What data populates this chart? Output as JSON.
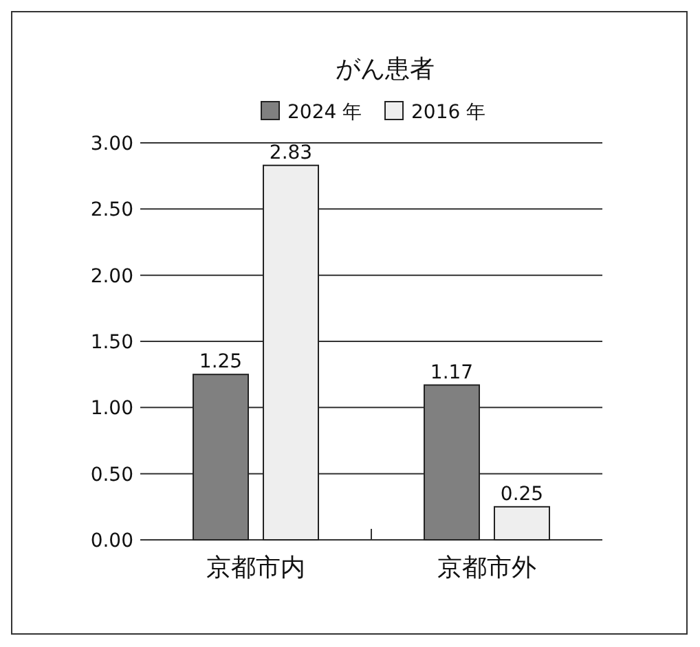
{
  "chart_data": {
    "type": "bar",
    "title": "がん患者",
    "categories": [
      "京都市内",
      "京都市外"
    ],
    "series": [
      {
        "name": "2024 年",
        "color": "#808080",
        "values": [
          1.25,
          1.17
        ]
      },
      {
        "name": "2016 年",
        "color": "#eeeeee",
        "values": [
          2.83,
          0.25
        ]
      }
    ],
    "ylim": [
      0,
      3
    ],
    "yticks": [
      {
        "value": 0,
        "label": "0.00"
      },
      {
        "value": 0.5,
        "label": "0.50"
      },
      {
        "value": 1,
        "label": "1.00"
      },
      {
        "value": 1.5,
        "label": "1.50"
      },
      {
        "value": 2,
        "label": "2.00"
      },
      {
        "value": 2.5,
        "label": "2.50"
      },
      {
        "value": 3,
        "label": "3.00"
      }
    ],
    "grid": "y",
    "legend": "top",
    "data_labels": true
  }
}
